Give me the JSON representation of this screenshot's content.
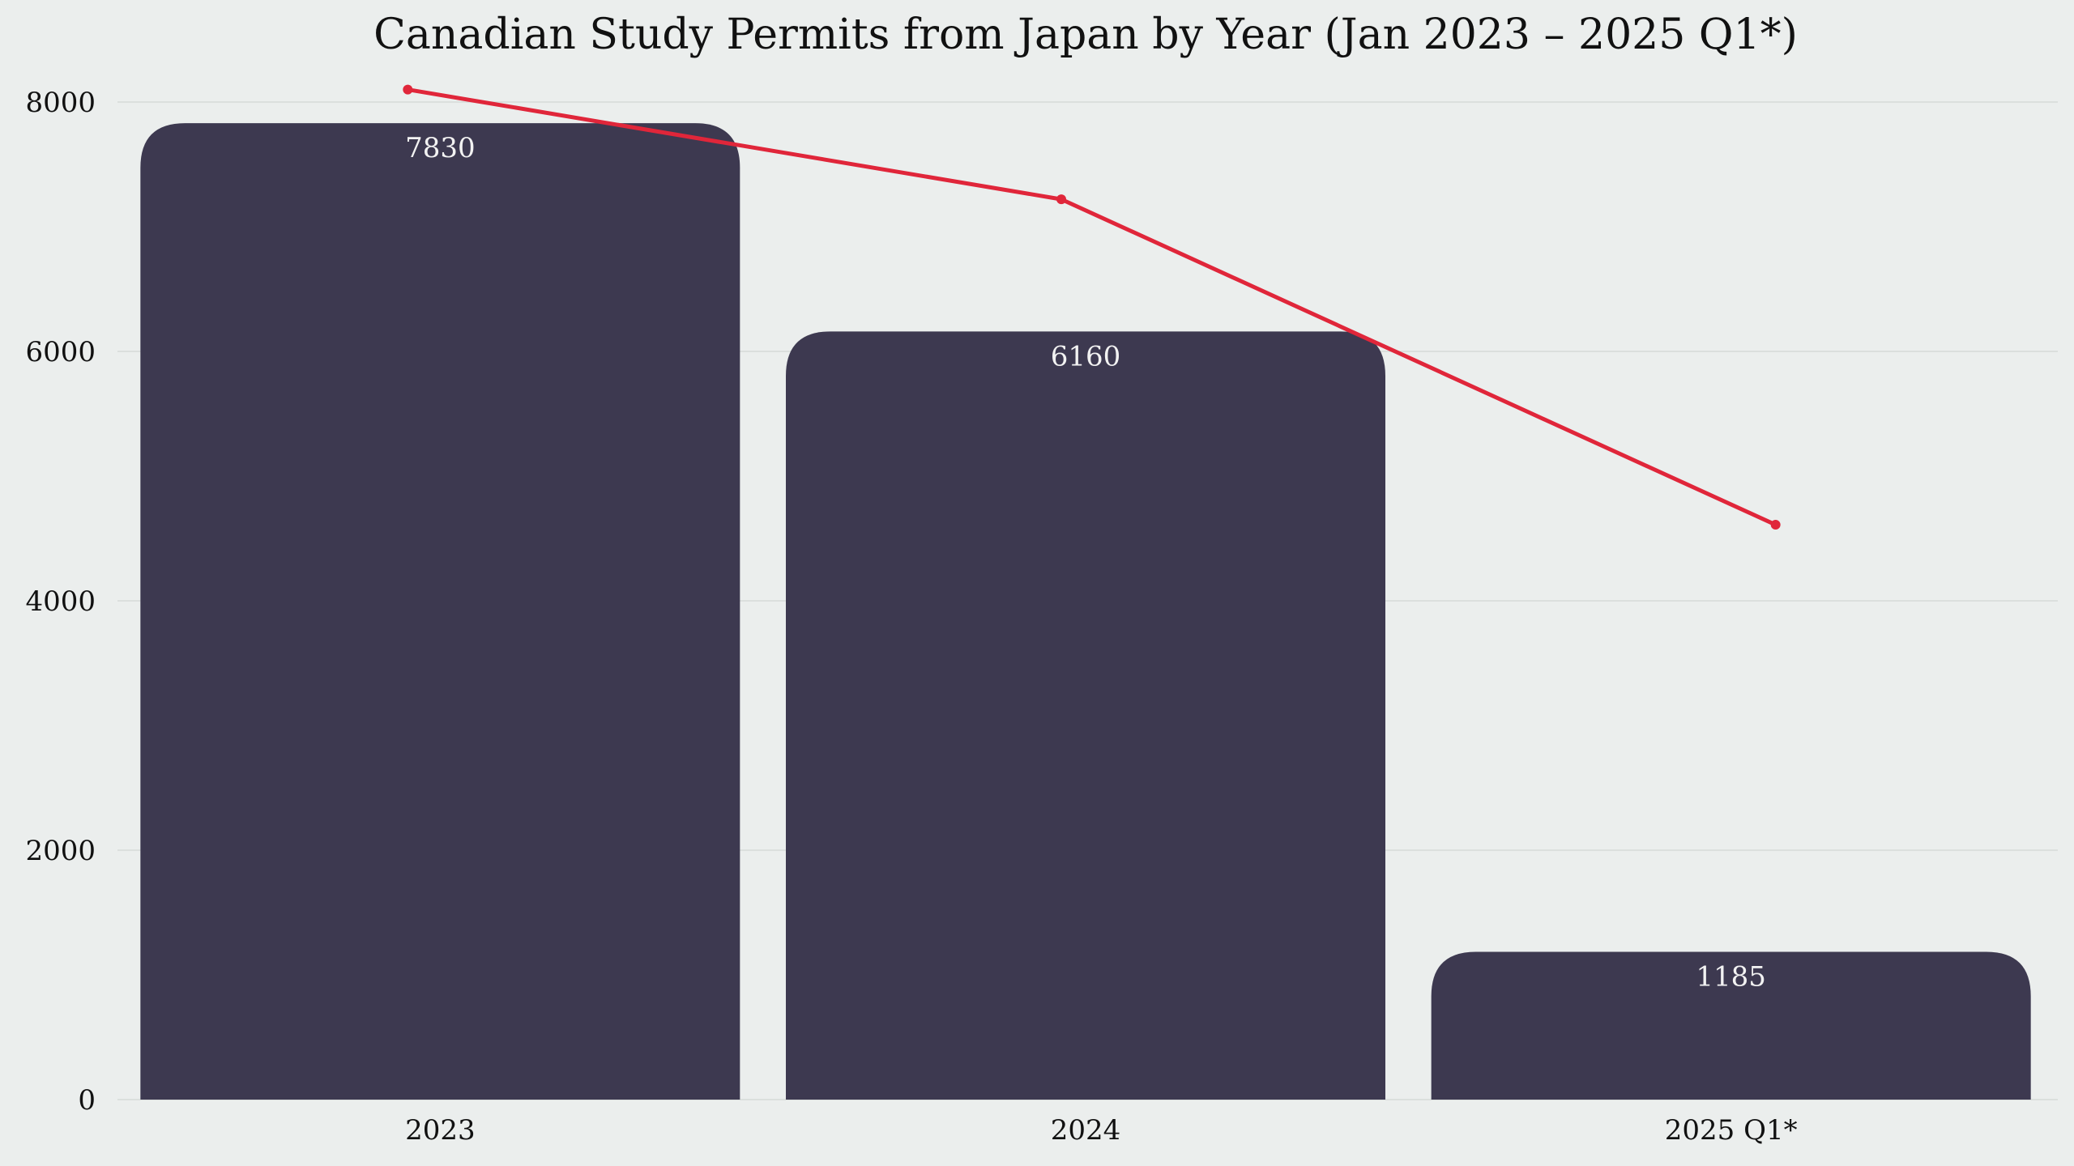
{
  "chart_data": {
    "type": "bar",
    "title": "Canadian Study Permits from Japan by Year (Jan 2023 – 2025 Q1*)",
    "xlabel": "",
    "ylabel": "",
    "categories": [
      "2023",
      "2024",
      "2025 Q1*"
    ],
    "values": [
      7830,
      6160,
      1185
    ],
    "value_labels": [
      "7830",
      "6160",
      "1185"
    ],
    "line_series": {
      "values": [
        8100,
        7220,
        4610
      ]
    },
    "ylim": [
      0,
      8300
    ],
    "yticks": [
      0,
      2000,
      4000,
      6000,
      8000
    ],
    "ytick_labels": [
      "0",
      "2000",
      "4000",
      "6000",
      "8000"
    ],
    "grid": true,
    "legend": "none"
  },
  "colors": {
    "background": "#ebeeed",
    "bar": "#3d3950",
    "line": "#e0263a",
    "bar_label": "#f2f2f2",
    "grid": "#d6dad8"
  }
}
